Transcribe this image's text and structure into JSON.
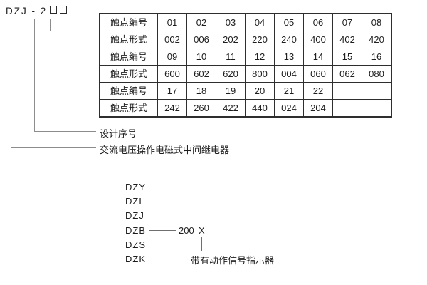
{
  "model": {
    "code": "DZJ - 2",
    "digit_boxes": [
      "□",
      "□"
    ]
  },
  "callouts": {
    "design_serial": "设计序号",
    "relay_type": "交流电压操作电磁式中间继电器"
  },
  "contact_table": {
    "rows": [
      {
        "label": "触点编号",
        "values": [
          "01",
          "02",
          "03",
          "04",
          "05",
          "06",
          "07",
          "08"
        ]
      },
      {
        "label": "触点形式",
        "values": [
          "002",
          "006",
          "202",
          "220",
          "240",
          "400",
          "402",
          "420"
        ]
      },
      {
        "label": "触点编号",
        "values": [
          "09",
          "10",
          "11",
          "12",
          "13",
          "14",
          "15",
          "16"
        ]
      },
      {
        "label": "触点形式",
        "values": [
          "600",
          "602",
          "620",
          "800",
          "004",
          "060",
          "062",
          "080"
        ]
      },
      {
        "label": "触点编号",
        "values": [
          "17",
          "18",
          "19",
          "20",
          "21",
          "22",
          "",
          ""
        ]
      },
      {
        "label": "触点形式",
        "values": [
          "242",
          "260",
          "422",
          "440",
          "024",
          "204",
          "",
          ""
        ]
      }
    ]
  },
  "series_list": {
    "items": [
      "DZY",
      "DZL",
      "DZJ",
      "DZB",
      "DZS",
      "DZK"
    ],
    "dzb_suffix_number": "200",
    "dzb_suffix_x": "X",
    "indicator_label": "带有动作信号指示器"
  }
}
